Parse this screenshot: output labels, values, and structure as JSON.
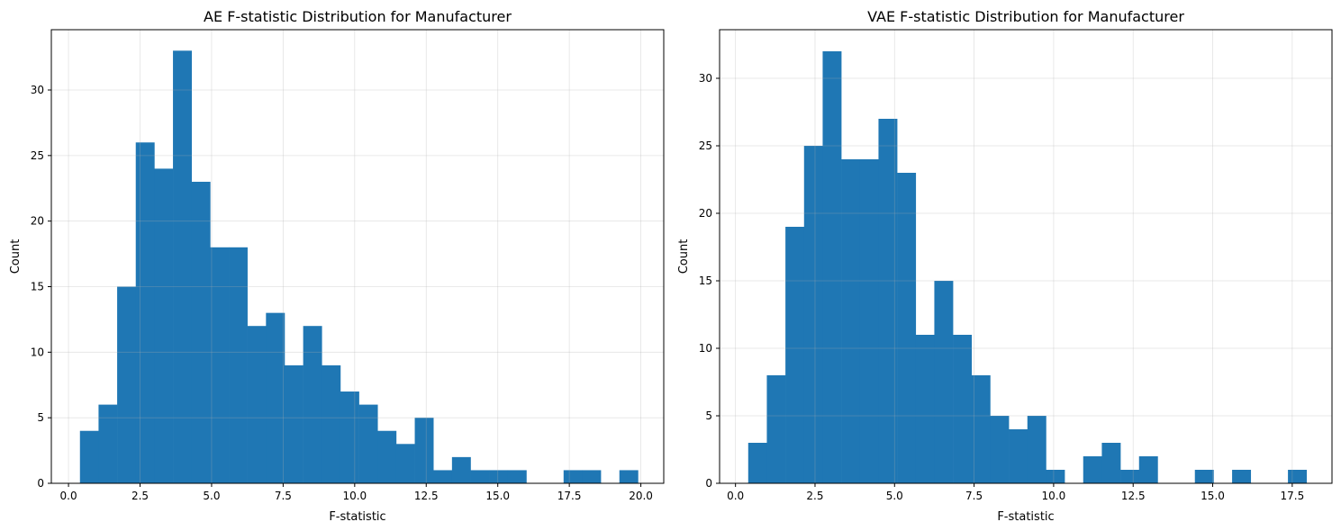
{
  "chart_data": [
    {
      "type": "bar",
      "title": "AE F-statistic Distribution for Manufacturer",
      "xlabel": "F-statistic",
      "ylabel": "Count",
      "xlim": [
        -0.6,
        20.8
      ],
      "ylim": [
        0,
        34.6
      ],
      "xticks": [
        0,
        2.5,
        5,
        7.5,
        10,
        12.5,
        15,
        17.5,
        20
      ],
      "xtick_labels": [
        "0.0",
        "2.5",
        "5.0",
        "7.5",
        "10.0",
        "12.5",
        "15.0",
        "17.5",
        "20.0"
      ],
      "yticks": [
        0,
        5,
        10,
        15,
        20,
        25,
        30
      ],
      "ytick_labels": [
        "0",
        "5",
        "10",
        "15",
        "20",
        "25",
        "30"
      ],
      "bin_start": 0.4,
      "bin_width": 0.65,
      "counts": [
        4,
        6,
        15,
        26,
        24,
        33,
        23,
        18,
        18,
        12,
        13,
        9,
        12,
        9,
        7,
        6,
        4,
        3,
        5,
        1,
        2,
        1,
        1,
        1,
        0,
        0,
        1,
        1,
        0,
        1
      ],
      "color": "#1f77b4",
      "grid": true
    },
    {
      "type": "bar",
      "title": "VAE F-statistic Distribution for Manufacturer",
      "xlabel": "F-statistic",
      "ylabel": "Count",
      "xlim": [
        -0.5,
        18.75
      ],
      "ylim": [
        0,
        33.6
      ],
      "xticks": [
        0,
        2.5,
        5,
        7.5,
        10,
        12.5,
        15,
        17.5
      ],
      "xtick_labels": [
        "0.0",
        "2.5",
        "5.0",
        "7.5",
        "10.0",
        "12.5",
        "15.0",
        "17.5"
      ],
      "yticks": [
        0,
        5,
        10,
        15,
        20,
        25,
        30
      ],
      "ytick_labels": [
        "0",
        "5",
        "10",
        "15",
        "20",
        "25",
        "30"
      ],
      "bin_start": 0.4,
      "bin_width": 0.585,
      "counts": [
        3,
        8,
        19,
        25,
        32,
        24,
        24,
        27,
        23,
        11,
        15,
        11,
        8,
        5,
        4,
        5,
        1,
        0,
        2,
        3,
        1,
        2,
        0,
        0,
        1,
        0,
        1,
        0,
        0,
        1
      ],
      "color": "#1f77b4",
      "grid": true
    }
  ]
}
